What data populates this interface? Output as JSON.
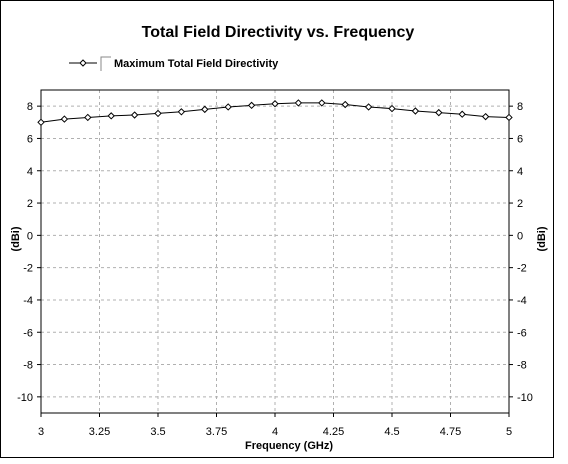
{
  "chart_data": {
    "type": "line",
    "title": "Total Field Directivity vs. Frequency",
    "xlabel": "Frequency (GHz)",
    "ylabel_left": "(dBi)",
    "ylabel_right": "(dBi)",
    "xlim": [
      3,
      5
    ],
    "ylim": [
      -11,
      9
    ],
    "x_ticks": [
      3,
      3.25,
      3.5,
      3.75,
      4,
      4.25,
      4.5,
      4.75,
      5
    ],
    "x_tick_labels": [
      "3",
      "3.25",
      "3.5",
      "3.75",
      "4",
      "4.25",
      "4.5",
      "4.75",
      "5"
    ],
    "y_ticks": [
      8,
      6,
      4,
      2,
      0,
      -2,
      -4,
      -6,
      -8,
      -10
    ],
    "y_tick_labels": [
      "8",
      "6",
      "4",
      "2",
      "0",
      "-2",
      "-4",
      "-6",
      "-8",
      "-10"
    ],
    "grid": true,
    "legend_position": "top-left",
    "series": [
      {
        "name": "Maximum Total Field Directivity",
        "color": "#000000",
        "x": [
          3.0,
          3.1,
          3.2,
          3.3,
          3.4,
          3.5,
          3.6,
          3.7,
          3.8,
          3.9,
          4.0,
          4.1,
          4.2,
          4.3,
          4.4,
          4.5,
          4.6,
          4.7,
          4.8,
          4.9,
          5.0
        ],
        "y": [
          7.0,
          7.2,
          7.3,
          7.4,
          7.45,
          7.55,
          7.65,
          7.8,
          7.95,
          8.05,
          8.15,
          8.2,
          8.2,
          8.1,
          7.95,
          7.85,
          7.7,
          7.6,
          7.5,
          7.35,
          7.3
        ]
      }
    ]
  }
}
